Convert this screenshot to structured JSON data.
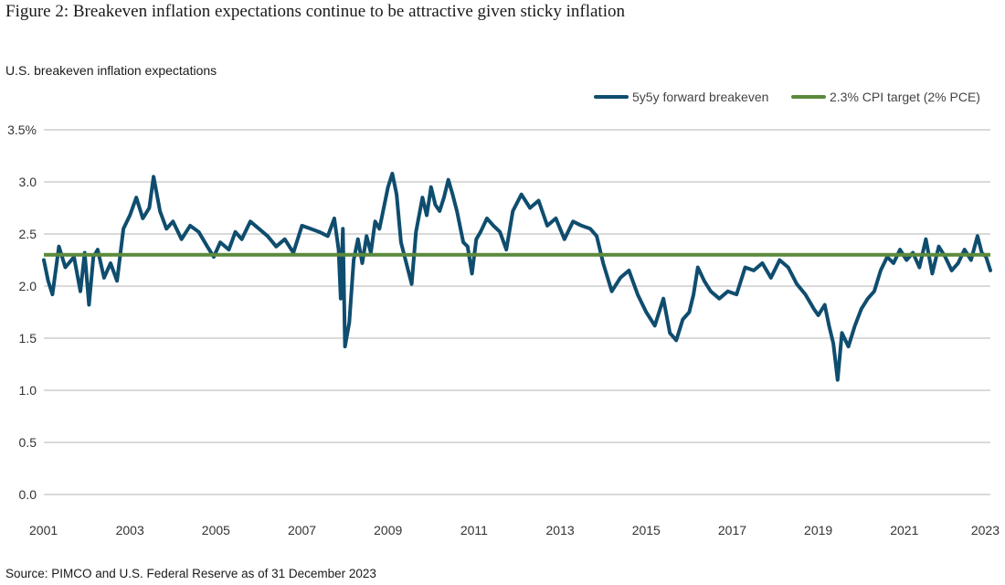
{
  "figure_title": "Figure 2: Breakeven inflation expectations continue to be attractive given sticky inflation",
  "subtitle": "U.S. breakeven inflation expectations",
  "source": "Source: PIMCO and U.S. Federal Reserve as of 31 December 2023",
  "colors": {
    "series": "#0f4d6e",
    "target": "#5b8a3c",
    "grid": "#b5b5b5"
  },
  "chart_data": {
    "type": "line",
    "title": "Figure 2: Breakeven inflation expectations continue to be attractive given sticky inflation",
    "ylabel": "U.S. breakeven inflation expectations",
    "xlabel": "",
    "ylim": [
      0,
      3.5
    ],
    "xlim": [
      2001.0,
      2023.0
    ],
    "grid": "horizontal",
    "legend_position": "top-right",
    "y_ticks": [
      "0.0",
      "0.5",
      "1.0",
      "1.5",
      "2.0",
      "2.5",
      "3.0",
      "3.5%"
    ],
    "x_ticks": [
      "2001",
      "2003",
      "2005",
      "2007",
      "2009",
      "2011",
      "2013",
      "2015",
      "2017",
      "2019",
      "2021",
      "2023"
    ],
    "legend": [
      {
        "label": "5y5y forward breakeven",
        "kind": "series"
      },
      {
        "label": "2.3% CPI target (2% PCE)",
        "kind": "target"
      }
    ],
    "series": [
      {
        "name": "5y5y forward breakeven",
        "x": [
          2001.0,
          2001.1,
          2001.2,
          2001.35,
          2001.5,
          2001.7,
          2001.85,
          2001.95,
          2002.05,
          2002.15,
          2002.25,
          2002.4,
          2002.55,
          2002.7,
          2002.85,
          2003.0,
          2003.15,
          2003.3,
          2003.45,
          2003.55,
          2003.7,
          2003.85,
          2004.0,
          2004.2,
          2004.4,
          2004.6,
          2004.8,
          2004.95,
          2005.1,
          2005.3,
          2005.45,
          2005.6,
          2005.8,
          2006.0,
          2006.2,
          2006.4,
          2006.6,
          2006.8,
          2007.0,
          2007.2,
          2007.4,
          2007.6,
          2007.75,
          2007.85,
          2007.9,
          2007.95,
          2008.0,
          2008.1,
          2008.2,
          2008.3,
          2008.4,
          2008.5,
          2008.6,
          2008.7,
          2008.8,
          2008.9,
          2009.0,
          2009.1,
          2009.2,
          2009.3,
          2009.45,
          2009.55,
          2009.65,
          2009.8,
          2009.9,
          2010.0,
          2010.1,
          2010.2,
          2010.3,
          2010.4,
          2010.5,
          2010.6,
          2010.75,
          2010.85,
          2010.95,
          2011.05,
          2011.15,
          2011.3,
          2011.45,
          2011.6,
          2011.75,
          2011.9,
          2012.1,
          2012.3,
          2012.5,
          2012.7,
          2012.9,
          2013.1,
          2013.3,
          2013.5,
          2013.7,
          2013.85,
          2014.0,
          2014.2,
          2014.4,
          2014.6,
          2014.8,
          2015.0,
          2015.2,
          2015.4,
          2015.55,
          2015.7,
          2015.85,
          2016.0,
          2016.1,
          2016.2,
          2016.35,
          2016.5,
          2016.7,
          2016.9,
          2017.1,
          2017.3,
          2017.5,
          2017.7,
          2017.9,
          2018.1,
          2018.3,
          2018.5,
          2018.7,
          2018.9,
          2019.0,
          2019.15,
          2019.25,
          2019.35,
          2019.45,
          2019.55,
          2019.7,
          2019.85,
          2020.0,
          2020.15,
          2020.3,
          2020.45,
          2020.6,
          2020.75,
          2020.9,
          2021.05,
          2021.2,
          2021.35,
          2021.5,
          2021.65,
          2021.8,
          2021.95,
          2022.1,
          2022.25,
          2022.4,
          2022.55,
          2022.7,
          2022.8,
          2022.9,
          2023.0
        ],
        "values": [
          2.25,
          2.05,
          1.92,
          2.38,
          2.18,
          2.28,
          1.95,
          2.32,
          1.82,
          2.28,
          2.35,
          2.08,
          2.22,
          2.05,
          2.55,
          2.68,
          2.85,
          2.65,
          2.75,
          3.05,
          2.72,
          2.55,
          2.62,
          2.45,
          2.58,
          2.52,
          2.38,
          2.28,
          2.42,
          2.35,
          2.52,
          2.45,
          2.62,
          2.55,
          2.48,
          2.38,
          2.45,
          2.32,
          2.58,
          2.55,
          2.52,
          2.48,
          2.65,
          2.35,
          1.88,
          2.55,
          1.42,
          1.65,
          2.25,
          2.45,
          2.22,
          2.48,
          2.32,
          2.62,
          2.55,
          2.75,
          2.95,
          3.08,
          2.88,
          2.42,
          2.18,
          2.02,
          2.52,
          2.85,
          2.68,
          2.95,
          2.78,
          2.72,
          2.85,
          3.02,
          2.88,
          2.72,
          2.42,
          2.38,
          2.12,
          2.45,
          2.52,
          2.65,
          2.58,
          2.52,
          2.35,
          2.72,
          2.88,
          2.75,
          2.82,
          2.58,
          2.65,
          2.45,
          2.62,
          2.58,
          2.55,
          2.48,
          2.22,
          1.95,
          2.08,
          2.15,
          1.92,
          1.75,
          1.62,
          1.88,
          1.55,
          1.48,
          1.68,
          1.75,
          1.92,
          2.18,
          2.05,
          1.95,
          1.88,
          1.95,
          1.92,
          2.18,
          2.15,
          2.22,
          2.08,
          2.25,
          2.18,
          2.02,
          1.92,
          1.78,
          1.72,
          1.82,
          1.62,
          1.45,
          1.1,
          1.55,
          1.42,
          1.62,
          1.78,
          1.88,
          1.95,
          2.15,
          2.28,
          2.22,
          2.35,
          2.25,
          2.32,
          2.18,
          2.45,
          2.12,
          2.38,
          2.28,
          2.15,
          2.22,
          2.35,
          2.25,
          2.48,
          2.32,
          2.28,
          2.15
        ]
      },
      {
        "name": "2.3% CPI target (2% PCE)",
        "x": [
          2001.0,
          2023.0
        ],
        "values": [
          2.3,
          2.3
        ]
      }
    ]
  }
}
